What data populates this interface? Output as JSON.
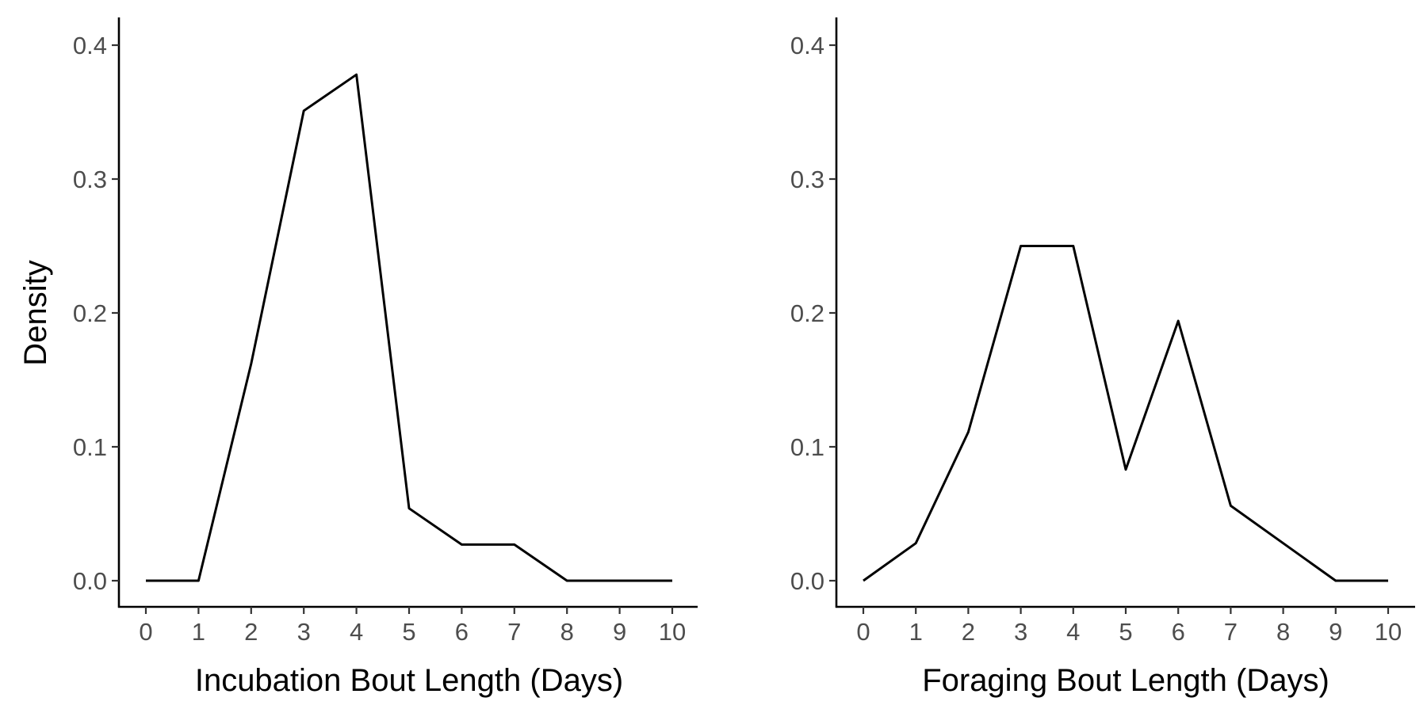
{
  "chart_data": [
    {
      "type": "line",
      "xlabel": "Incubation Bout Length (Days)",
      "ylabel": "Density",
      "xlim": [
        0,
        10
      ],
      "ylim": [
        0,
        0.4
      ],
      "x_ticks": [
        "0",
        "1",
        "2",
        "3",
        "4",
        "5",
        "6",
        "7",
        "8",
        "9",
        "10"
      ],
      "y_ticks": [
        "0.0",
        "0.1",
        "0.2",
        "0.3",
        "0.4"
      ],
      "series": [
        {
          "x": [
            0,
            1,
            2,
            3,
            4,
            5,
            6,
            7,
            8,
            9,
            10
          ],
          "y": [
            0,
            0,
            0.162,
            0.351,
            0.378,
            0.054,
            0.027,
            0.027,
            0,
            0,
            0
          ]
        }
      ],
      "grid": false,
      "color": "#000000"
    },
    {
      "type": "line",
      "xlabel": "Foraging Bout Length (Days)",
      "ylabel": "",
      "xlim": [
        0,
        10
      ],
      "ylim": [
        0,
        0.4
      ],
      "x_ticks": [
        "0",
        "1",
        "2",
        "3",
        "4",
        "5",
        "6",
        "7",
        "8",
        "9",
        "10"
      ],
      "y_ticks": [
        "0.0",
        "0.1",
        "0.2",
        "0.3",
        "0.4"
      ],
      "series": [
        {
          "x": [
            0,
            1,
            2,
            3,
            4,
            5,
            6,
            7,
            8,
            9,
            10
          ],
          "y": [
            0,
            0.028,
            0.111,
            0.25,
            0.25,
            0.083,
            0.194,
            0.056,
            0.028,
            0,
            0
          ]
        }
      ],
      "grid": false,
      "color": "#000000"
    }
  ]
}
